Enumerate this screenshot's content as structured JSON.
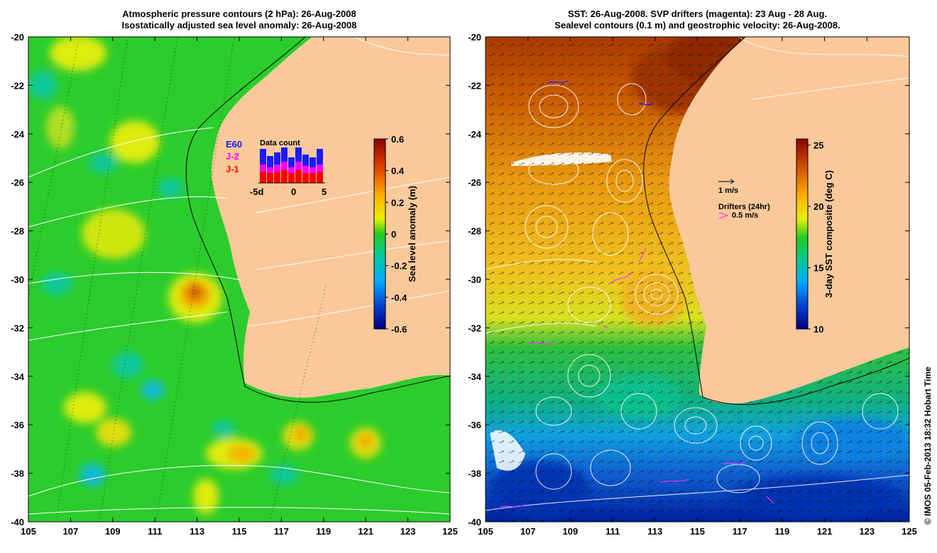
{
  "left_panel": {
    "title_line1": "Atmospheric pressure contours (2 hPa): 26-Aug-2008",
    "title_line2": "Isostatically adjusted sea level anomaly: 26-Aug-2008",
    "x_ticks": [
      "105",
      "107",
      "109",
      "111",
      "113",
      "115",
      "117",
      "119",
      "121",
      "123",
      "125"
    ],
    "y_ticks": [
      "-20",
      "-22",
      "-24",
      "-26",
      "-28",
      "-30",
      "-32",
      "-34",
      "-36",
      "-38",
      "-40"
    ],
    "colorbar": {
      "label": "Sea level anomaly (m)",
      "ticks": [
        "0.6",
        "0.4",
        "0.2",
        "0",
        "-0.2",
        "-0.4",
        "-0.6"
      ],
      "range": [
        -0.6,
        0.6
      ]
    },
    "data_count": {
      "title": "Data count",
      "legend": [
        "E60",
        "J-2",
        "J-1"
      ],
      "legend_colors": [
        "#1a1aff",
        "#ff00ff",
        "#ff0000"
      ],
      "x_ticks": [
        "-5d",
        "0",
        "5"
      ]
    }
  },
  "right_panel": {
    "title_line1": "SST: 26-Aug-2008. SVP drifters (magenta): 23 Aug - 28 Aug.",
    "title_line2": "Sealevel contours (0.1 m) and geostrophic velocity: 26-Aug-2008.",
    "x_ticks": [
      "105",
      "107",
      "109",
      "111",
      "113",
      "115",
      "117",
      "119",
      "121",
      "123",
      "125"
    ],
    "y_ticks": [
      "-20",
      "-22",
      "-24",
      "-26",
      "-28",
      "-30",
      "-32",
      "-34",
      "-36",
      "-38",
      "-40"
    ],
    "colorbar": {
      "label": "3-day SST composite (deg C)",
      "ticks": [
        "25",
        "20",
        "15",
        "10"
      ],
      "range": [
        10,
        25.5
      ]
    },
    "velocity_scale": "1 m/s",
    "drifters_label": "Drifters (24hr)",
    "drifter_scale": "0.5 m/s"
  },
  "credit": "© IMOS 05-Feb-2013 18:32 Hobart Time",
  "colors": {
    "land": "#f9c99a",
    "contour": "#ffffff",
    "drifter": "#ff33ff",
    "arrow": "#000000"
  }
}
